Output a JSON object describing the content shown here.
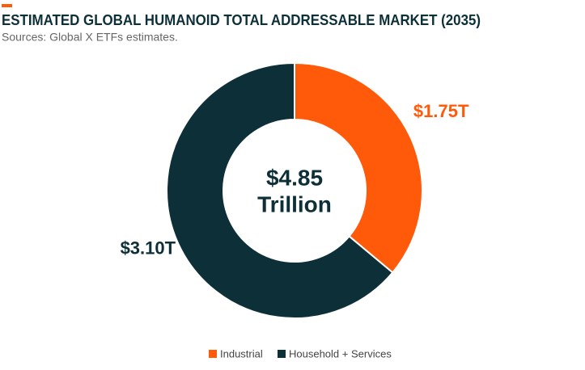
{
  "chart_data": {
    "type": "donut",
    "title": "ESTIMATED GLOBAL HUMANOID TOTAL ADDRESSABLE MARKET (2035)",
    "subtitle": "Sources: Global X ETFs estimates.",
    "categories": [
      "Industrial",
      "Household + Services"
    ],
    "values": [
      1.75,
      3.1
    ],
    "value_labels": [
      "$1.75T",
      "$3.10T"
    ],
    "colors": [
      "#ff5a0a",
      "#0c2f38"
    ],
    "center_text": [
      "$4.85",
      "Trillion"
    ]
  }
}
